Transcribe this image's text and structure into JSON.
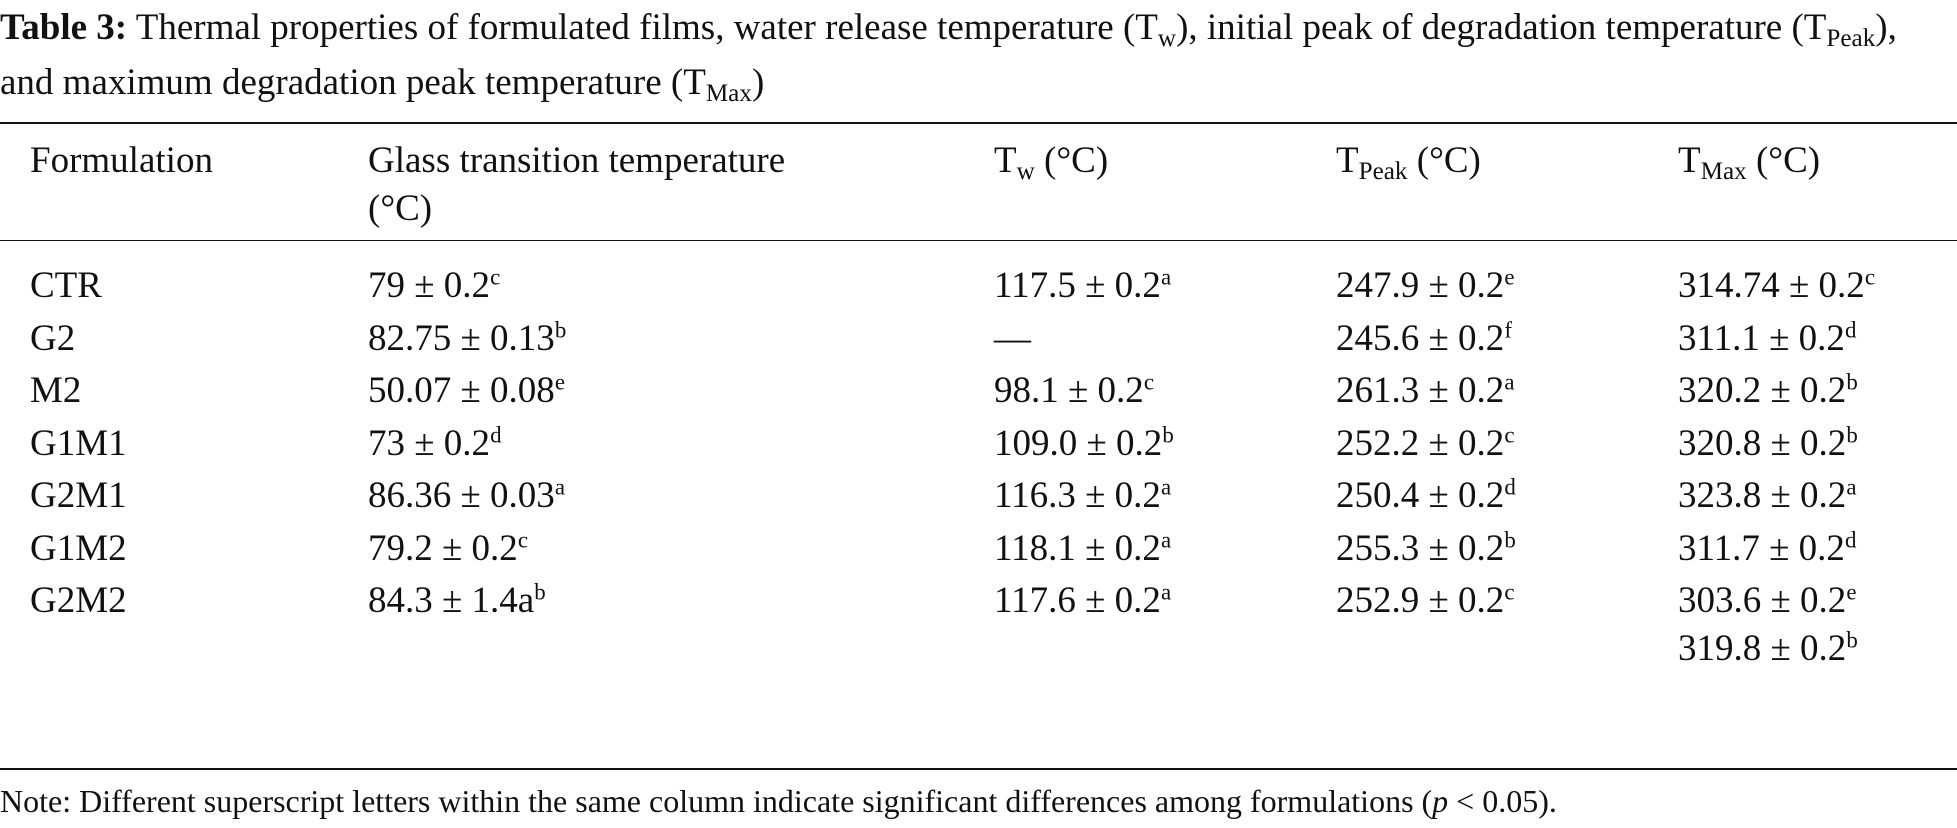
{
  "caption": {
    "label": "Table 3:",
    "part1": " Thermal properties of formulated films, water release temperature (T",
    "sub1": "w",
    "part2": "), initial peak of degradation temperature (T",
    "sub2": "Peak",
    "part3": "), and maximum degradation peak temperature (T",
    "sub3": "Max",
    "part4": ")"
  },
  "headers": {
    "formulation": "Formulation",
    "glass_line1": "Glass transition temperature",
    "glass_line2": "(°C)",
    "tw_main": "T",
    "tw_sub": "w",
    "tw_unit": " (°C)",
    "tpeak_main": "T",
    "tpeak_sub": "Peak",
    "tpeak_unit": " (°C)",
    "tmax_main": "T",
    "tmax_sub": "Max",
    "tmax_unit": " (°C)"
  },
  "rows": [
    {
      "name": "CTR",
      "glass": {
        "v": "79 ± 0.2",
        "s": "c"
      },
      "tw": {
        "v": "117.5 ± 0.2",
        "s": "a"
      },
      "tpeak": {
        "v": "247.9 ± 0.2",
        "s": "e"
      },
      "tmax": {
        "v": "314.74 ± 0.2",
        "s": "c"
      }
    },
    {
      "name": "G2",
      "glass": {
        "v": "82.75 ± 0.13",
        "s": "b"
      },
      "tw": {
        "v": "—",
        "s": ""
      },
      "tpeak": {
        "v": "245.6 ± 0.2",
        "s": "f"
      },
      "tmax": {
        "v": "311.1 ± 0.2",
        "s": "d"
      }
    },
    {
      "name": "M2",
      "glass": {
        "v": "50.07 ± 0.08",
        "s": "e"
      },
      "tw": {
        "v": "98.1 ± 0.2",
        "s": "c"
      },
      "tpeak": {
        "v": "261.3 ± 0.2",
        "s": "a"
      },
      "tmax": {
        "v": "320.2 ± 0.2",
        "s": "b"
      }
    },
    {
      "name": "G1M1",
      "glass": {
        "v": "73 ± 0.2",
        "s": "d"
      },
      "tw": {
        "v": "109.0 ± 0.2",
        "s": "b"
      },
      "tpeak": {
        "v": "252.2 ± 0.2",
        "s": "c"
      },
      "tmax": {
        "v": "320.8 ± 0.2",
        "s": "b"
      }
    },
    {
      "name": "G2M1",
      "glass": {
        "v": "86.36 ± 0.03",
        "s": "a"
      },
      "tw": {
        "v": "116.3 ± 0.2",
        "s": "a"
      },
      "tpeak": {
        "v": "250.4 ± 0.2",
        "s": "d"
      },
      "tmax": {
        "v": "323.8 ± 0.2",
        "s": "a"
      }
    },
    {
      "name": "G1M2",
      "glass": {
        "v": "79.2 ± 0.2",
        "s": "c"
      },
      "tw": {
        "v": "118.1 ± 0.2",
        "s": "a"
      },
      "tpeak": {
        "v": "255.3 ± 0.2",
        "s": "b"
      },
      "tmax": {
        "v": "311.7 ± 0.2",
        "s": "d"
      }
    },
    {
      "name": "G2M2",
      "glass": {
        "v": "84.3 ± 1.4a",
        "s": "b"
      },
      "tw": {
        "v": "117.6 ± 0.2",
        "s": "a"
      },
      "tpeak": {
        "v": "252.9 ± 0.2",
        "s": "c"
      },
      "tmax": {
        "v": "303.6 ± 0.2",
        "s": "e"
      },
      "tmax2": {
        "v": "319.8 ± 0.2",
        "s": "b"
      }
    }
  ],
  "note": {
    "text1": "Note: Different superscript letters within the same column indicate significant differences among formulations (",
    "p": "p",
    "text2": " < 0.05)."
  }
}
